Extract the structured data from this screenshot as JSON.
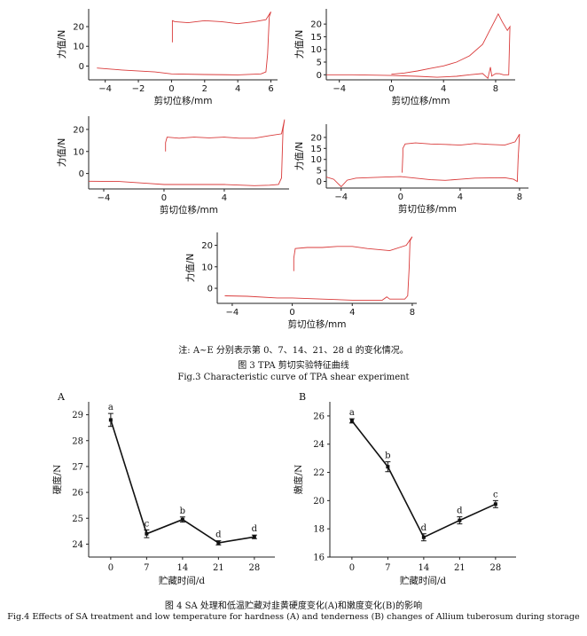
{
  "figure3": {
    "note": "注: A~E 分别表示第 0、7、14、21、28 d 的变化情况。",
    "caption_cn": "图 3 TPA 剪切实验特征曲线",
    "caption_en": "Fig.3 Characteristic curve of TPA shear experiment"
  },
  "figure4": {
    "caption_cn": "图 4 SA 处理和低温贮藏对韭黄硬度变化(A)和嫩度变化(B)的影响",
    "caption_en": "Fig.4 Effects of SA treatment and low temperature for hardness (A) and tenderness (B) changes of Allium tuberosum during storage"
  },
  "colors": {
    "tpa_curve": "#d93a3a",
    "axis": "#222222",
    "line": "#111111"
  },
  "chart_data": [
    {
      "type": "line",
      "panel": "TPA-1",
      "xlabel": "剪切位移/mm",
      "ylabel": "力值/N",
      "xlim": [
        -5,
        6.4
      ],
      "ylim": [
        -7,
        29
      ],
      "xticks": [
        -4,
        -2,
        0,
        2,
        4,
        6
      ],
      "yticks": [
        0,
        10,
        20
      ],
      "series": [
        {
          "points": [
            [
              -4.5,
              -1
            ],
            [
              -3,
              -2
            ],
            [
              -1,
              -3
            ],
            [
              0,
              -4
            ],
            [
              2,
              -4.3
            ],
            [
              4,
              -4.5
            ],
            [
              5.4,
              -4
            ],
            [
              5.7,
              -3
            ],
            [
              5.8,
              6
            ],
            [
              5.9,
              25
            ],
            [
              6,
              27.5
            ],
            [
              5.7,
              23.5
            ],
            [
              5,
              22.5
            ],
            [
              4,
              21.5
            ],
            [
              3,
              22.5
            ],
            [
              2,
              23
            ],
            [
              1,
              22
            ],
            [
              0.2,
              22.5
            ],
            [
              0.05,
              23
            ],
            [
              0.05,
              12
            ]
          ]
        }
      ]
    },
    {
      "type": "line",
      "panel": "TPA-2",
      "xlabel": "剪切位移/mm",
      "ylabel": "力值/N",
      "xlim": [
        -5,
        9.5
      ],
      "ylim": [
        -2,
        26
      ],
      "xticks": [
        -4,
        0,
        4,
        8
      ],
      "yticks": [
        0,
        5,
        10,
        15,
        20
      ],
      "series": [
        {
          "points": [
            [
              -5,
              0
            ],
            [
              -3,
              0
            ],
            [
              0,
              -0.3
            ],
            [
              2,
              -0.6
            ],
            [
              3.5,
              -1
            ],
            [
              5,
              -0.6
            ],
            [
              6,
              0
            ],
            [
              7,
              0.5
            ],
            [
              7.4,
              -1.4
            ],
            [
              7.6,
              3
            ],
            [
              7.7,
              -0.5
            ],
            [
              8,
              0.5
            ],
            [
              8.3,
              0.4
            ],
            [
              8.6,
              0
            ],
            [
              9,
              0
            ],
            [
              9.1,
              19
            ],
            [
              8.9,
              17.5
            ],
            [
              8.5,
              21
            ],
            [
              8.2,
              24
            ],
            [
              7.9,
              21
            ],
            [
              7.5,
              17
            ],
            [
              7,
              12
            ],
            [
              6,
              7.5
            ],
            [
              5,
              5
            ],
            [
              4,
              3.5
            ],
            [
              3,
              2.5
            ],
            [
              2,
              1.5
            ],
            [
              1,
              0.7
            ],
            [
              0,
              0.2
            ]
          ]
        }
      ]
    },
    {
      "type": "line",
      "panel": "TPA-3",
      "xlabel": "剪切位移/mm",
      "ylabel": "力值/N",
      "xlim": [
        -5,
        8.3
      ],
      "ylim": [
        -7,
        26
      ],
      "xticks": [
        -4,
        0,
        4
      ],
      "yticks": [
        0,
        10,
        20
      ],
      "series": [
        {
          "points": [
            [
              -5,
              -3.5
            ],
            [
              -3,
              -3.6
            ],
            [
              -1,
              -4.5
            ],
            [
              0,
              -5
            ],
            [
              2,
              -5
            ],
            [
              4,
              -5
            ],
            [
              6,
              -5.5
            ],
            [
              7,
              -5.3
            ],
            [
              7.6,
              -5
            ],
            [
              7.8,
              -2
            ],
            [
              7.85,
              10
            ],
            [
              7.9,
              20
            ],
            [
              8,
              24.5
            ],
            [
              7.8,
              18
            ],
            [
              7,
              17.2
            ],
            [
              6,
              16
            ],
            [
              5,
              16
            ],
            [
              4,
              16.5
            ],
            [
              3,
              16.2
            ],
            [
              2,
              16.5
            ],
            [
              1,
              16
            ],
            [
              0.2,
              16.5
            ],
            [
              0.1,
              14
            ],
            [
              0.1,
              10
            ]
          ]
        }
      ]
    },
    {
      "type": "line",
      "panel": "TPA-4",
      "xlabel": "剪切位移/mm",
      "ylabel": "力值/N",
      "xlim": [
        -5,
        8.6
      ],
      "ylim": [
        -3,
        26
      ],
      "xticks": [
        -4,
        0,
        4,
        8
      ],
      "yticks": [
        0,
        5,
        10,
        15,
        20
      ],
      "series": [
        {
          "points": [
            [
              -5,
              2
            ],
            [
              -4.5,
              1
            ],
            [
              -4,
              -2.4
            ],
            [
              -3.6,
              0.6
            ],
            [
              -3,
              1.5
            ],
            [
              -1,
              2
            ],
            [
              0,
              2.2
            ],
            [
              1,
              1.5
            ],
            [
              2,
              0.8
            ],
            [
              3,
              0.5
            ],
            [
              4,
              1
            ],
            [
              5,
              1.5
            ],
            [
              6,
              1.6
            ],
            [
              7,
              1.7
            ],
            [
              7.6,
              1
            ],
            [
              7.85,
              0
            ],
            [
              7.9,
              10
            ],
            [
              8,
              21.5
            ],
            [
              7.7,
              18
            ],
            [
              7,
              16.5
            ],
            [
              6,
              16.8
            ],
            [
              5,
              17.2
            ],
            [
              4,
              16.5
            ],
            [
              3,
              16.8
            ],
            [
              2,
              17
            ],
            [
              1,
              17.5
            ],
            [
              0.3,
              17
            ],
            [
              0.15,
              15
            ],
            [
              0.15,
              12
            ],
            [
              0.1,
              4
            ]
          ]
        }
      ]
    },
    {
      "type": "line",
      "panel": "TPA-5",
      "xlabel": "剪切位移/mm",
      "ylabel": "力值/N",
      "xlim": [
        -5,
        8.3
      ],
      "ylim": [
        -7,
        26
      ],
      "xticks": [
        -4,
        0,
        4,
        8
      ],
      "yticks": [
        0,
        10,
        20
      ],
      "series": [
        {
          "points": [
            [
              -4.5,
              -3.5
            ],
            [
              -3,
              -3.7
            ],
            [
              -1,
              -4.5
            ],
            [
              0,
              -4.5
            ],
            [
              2,
              -5
            ],
            [
              4,
              -5.5
            ],
            [
              6,
              -5.5
            ],
            [
              6.3,
              -4
            ],
            [
              6.5,
              -5
            ],
            [
              7.5,
              -5
            ],
            [
              7.7,
              -3.5
            ],
            [
              7.8,
              10
            ],
            [
              7.85,
              22
            ],
            [
              8,
              24
            ],
            [
              7.6,
              20
            ],
            [
              6.5,
              17.5
            ],
            [
              5,
              18.5
            ],
            [
              4,
              19.5
            ],
            [
              3,
              19.5
            ],
            [
              2,
              19
            ],
            [
              1,
              19
            ],
            [
              0.2,
              18.5
            ],
            [
              0.1,
              14
            ],
            [
              0.1,
              8
            ]
          ]
        }
      ]
    },
    {
      "type": "line",
      "panel": "A",
      "xlabel": "贮藏时间/d",
      "ylabel": "硬度/N",
      "x": [
        0,
        7,
        14,
        21,
        28
      ],
      "xlim": [
        -4.3,
        32
      ],
      "ylim": [
        23.5,
        29.5
      ],
      "yticks": [
        24,
        25,
        26,
        27,
        28,
        29
      ],
      "series": [
        {
          "values": [
            28.8,
            24.4,
            24.95,
            24.05,
            24.28
          ],
          "error": [
            0.25,
            0.15,
            0.1,
            0.08,
            0.07
          ],
          "labels": [
            "a",
            "c",
            "b",
            "d",
            "d"
          ]
        }
      ]
    },
    {
      "type": "line",
      "panel": "B",
      "xlabel": "贮藏时间/d",
      "ylabel": "嫩度/N",
      "x": [
        0,
        7,
        14,
        21,
        28
      ],
      "xlim": [
        -4.3,
        32
      ],
      "ylim": [
        16,
        27
      ],
      "yticks": [
        16,
        18,
        20,
        22,
        24,
        26
      ],
      "series": [
        {
          "values": [
            25.65,
            22.4,
            17.4,
            18.6,
            19.75
          ],
          "error": [
            0.15,
            0.35,
            0.25,
            0.25,
            0.25
          ],
          "labels": [
            "a",
            "b",
            "d",
            "d",
            "c"
          ]
        }
      ]
    }
  ]
}
